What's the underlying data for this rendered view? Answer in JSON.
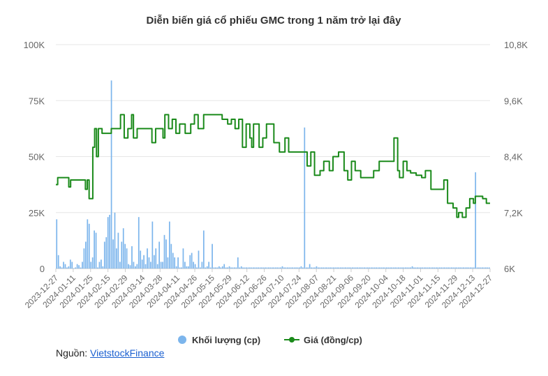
{
  "chart_data": {
    "type": "bar+line",
    "title": "Diễn biến giá cổ phiếu GMC trong 1 năm trở lại đây",
    "y_left": {
      "min": 0,
      "max": 100000,
      "ticks": [
        "0",
        "25K",
        "50K",
        "75K",
        "100K"
      ]
    },
    "y_right": {
      "min": 6000,
      "max": 10800,
      "ticks": [
        "6K",
        "7,2K",
        "8,4K",
        "9,6K",
        "10,8K"
      ]
    },
    "x_ticks": [
      "2023-12-27",
      "2024-01-11",
      "2024-01-25",
      "2024-02-15",
      "2024-02-29",
      "2024-03-14",
      "2024-03-28",
      "2024-04-11",
      "2024-04-26",
      "2024-05-15",
      "2024-05-29",
      "2024-06-12",
      "2024-06-26",
      "2024-07-10",
      "2024-07-24",
      "2024-08-07",
      "2024-08-21",
      "2024-09-06",
      "2024-09-20",
      "2024-10-04",
      "2024-10-18",
      "2024-11-01",
      "2024-11-15",
      "2024-11-29",
      "2024-12-13",
      "2024-12-27"
    ],
    "legend": [
      "Khối lượng (cp)",
      "Giá (đồng/cp)"
    ],
    "colors": {
      "volume": "#7cb5ec",
      "price": "#1a8a1a"
    },
    "volume_series_name": "Khối lượng (cp)",
    "price_series_name": "Giá (đồng/cp)",
    "volume": [
      22000,
      6000,
      1000,
      500,
      3000,
      2000,
      500,
      1000,
      4000,
      3000,
      200,
      500,
      2000,
      1500,
      500,
      3000,
      9000,
      12000,
      22000,
      20000,
      3000,
      5000,
      17000,
      16000,
      500,
      3000,
      4000,
      1000,
      12000,
      14000,
      23000,
      24000,
      84000,
      13000,
      25000,
      9000,
      16000,
      3000,
      12000,
      18000,
      11000,
      9000,
      2000,
      1500,
      10000,
      3000,
      1000,
      2000,
      23000,
      8000,
      4000,
      6000,
      2000,
      9000,
      5000,
      3000,
      21000,
      6000,
      9000,
      2000,
      12000,
      3000,
      3000,
      15000,
      13000,
      5000,
      21000,
      11000,
      7000,
      5000,
      1000,
      5000,
      500,
      500,
      9000,
      3000,
      1000,
      1000,
      6000,
      7000,
      3000,
      2000,
      500,
      8000,
      500,
      3000,
      17000,
      500,
      1000,
      3000,
      500,
      11000,
      500,
      500,
      500,
      1000,
      500,
      1000,
      2000,
      500,
      500,
      1000,
      500,
      500,
      500,
      500,
      5000,
      500,
      1000,
      500,
      500,
      500,
      500,
      500,
      500,
      500,
      500,
      500,
      500,
      500,
      500,
      500,
      500,
      500,
      500,
      500,
      500,
      500,
      500,
      500,
      500,
      500,
      1000,
      500,
      500,
      500,
      500,
      500,
      500,
      500,
      500,
      500,
      500,
      1000,
      500,
      63000,
      500,
      500,
      2000,
      500,
      500,
      500,
      1000,
      500,
      500,
      500,
      500,
      500,
      500,
      500,
      500,
      500,
      500,
      500,
      500,
      500,
      500,
      500,
      500,
      500,
      500,
      500,
      500,
      500,
      500,
      500,
      500,
      500,
      500,
      500,
      500,
      500,
      500,
      500,
      500,
      500,
      500,
      500,
      500,
      500,
      500,
      500,
      500,
      500,
      500,
      500,
      500,
      500,
      500,
      500,
      500,
      500,
      500,
      500,
      500,
      500,
      500,
      500,
      1000,
      500,
      500,
      500,
      500,
      500,
      500,
      500,
      500,
      500,
      500,
      500,
      500,
      500,
      500,
      500,
      500,
      500,
      500,
      500,
      500,
      500,
      500,
      500,
      500,
      500,
      500,
      500,
      500,
      500,
      500,
      500,
      500,
      500,
      500,
      500,
      500,
      43000,
      500,
      500,
      500,
      500,
      500,
      500,
      500,
      500
    ],
    "price_points": [
      [
        0,
        7800
      ],
      [
        1,
        7950
      ],
      [
        6,
        7950
      ],
      [
        7,
        7750
      ],
      [
        8,
        7900
      ],
      [
        15,
        7900
      ],
      [
        16,
        7700
      ],
      [
        17,
        7900
      ],
      [
        18,
        7500
      ],
      [
        20,
        8600
      ],
      [
        21,
        9000
      ],
      [
        22,
        8400
      ],
      [
        23,
        9000
      ],
      [
        25,
        8900
      ],
      [
        30,
        9000
      ],
      [
        33,
        9000
      ],
      [
        35,
        9300
      ],
      [
        37,
        8800
      ],
      [
        39,
        9000
      ],
      [
        41,
        9300
      ],
      [
        42,
        8800
      ],
      [
        44,
        9000
      ],
      [
        52,
        8700
      ],
      [
        54,
        9000
      ],
      [
        58,
        8800
      ],
      [
        59,
        9300
      ],
      [
        61,
        9000
      ],
      [
        63,
        9200
      ],
      [
        65,
        8900
      ],
      [
        67,
        9100
      ],
      [
        70,
        8900
      ],
      [
        73,
        9100
      ],
      [
        75,
        9300
      ],
      [
        77,
        9000
      ],
      [
        80,
        9300
      ],
      [
        90,
        9200
      ],
      [
        93,
        9100
      ],
      [
        95,
        9200
      ],
      [
        97,
        9000
      ],
      [
        99,
        9200
      ],
      [
        101,
        8600
      ],
      [
        103,
        9100
      ],
      [
        105,
        8800
      ],
      [
        106,
        8600
      ],
      [
        107,
        9100
      ],
      [
        110,
        8600
      ],
      [
        112,
        8800
      ],
      [
        114,
        9100
      ],
      [
        118,
        8700
      ],
      [
        121,
        8500
      ],
      [
        124,
        8800
      ],
      [
        126,
        8500
      ],
      [
        128,
        8500
      ],
      [
        131,
        8500
      ],
      [
        136,
        8200
      ],
      [
        138,
        8500
      ],
      [
        140,
        8000
      ],
      [
        143,
        8100
      ],
      [
        145,
        8300
      ],
      [
        148,
        8100
      ],
      [
        150,
        8400
      ],
      [
        153,
        8500
      ],
      [
        156,
        8100
      ],
      [
        158,
        7900
      ],
      [
        160,
        8300
      ],
      [
        162,
        8100
      ],
      [
        165,
        7950
      ],
      [
        172,
        8100
      ],
      [
        175,
        8300
      ],
      [
        182,
        8300
      ],
      [
        183,
        8800
      ],
      [
        185,
        8100
      ],
      [
        186,
        7950
      ],
      [
        188,
        8300
      ],
      [
        190,
        8100
      ],
      [
        192,
        8050
      ],
      [
        195,
        8000
      ],
      [
        198,
        7950
      ],
      [
        200,
        8100
      ],
      [
        203,
        7700
      ],
      [
        210,
        7900
      ],
      [
        212,
        7400
      ],
      [
        215,
        7300
      ],
      [
        217,
        7100
      ],
      [
        218,
        7200
      ],
      [
        220,
        7100
      ],
      [
        222,
        7300
      ],
      [
        224,
        7500
      ],
      [
        226,
        7400
      ],
      [
        227,
        7550
      ],
      [
        230,
        7550
      ],
      [
        231,
        7500
      ],
      [
        233,
        7400
      ],
      [
        235,
        7400
      ]
    ]
  },
  "source": {
    "label": "Nguồn:",
    "link_text": "VietstockFinance"
  }
}
